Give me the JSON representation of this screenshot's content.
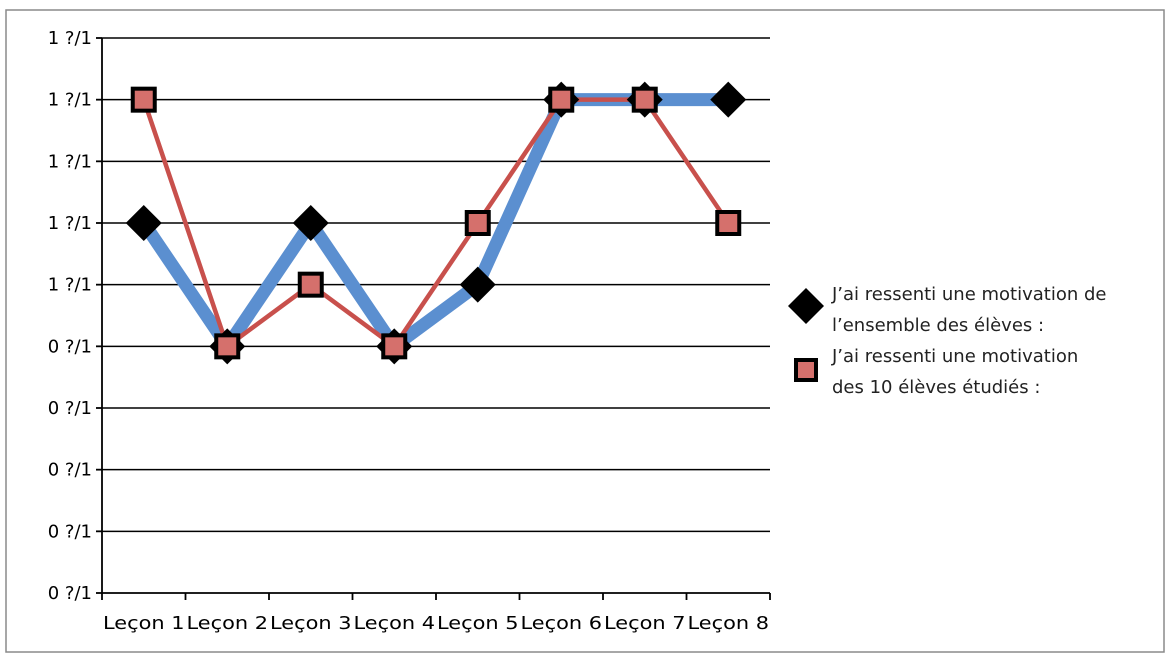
{
  "chart_data": {
    "type": "line",
    "title": "",
    "xlabel": "",
    "ylabel": "",
    "categories": [
      "Leçon 1",
      "Leçon 2",
      "Leçon 3",
      "Leçon 4",
      "Leçon 5",
      "Leçon 6",
      "Leçon 7",
      "Leçon 8"
    ],
    "y_tick_labels": [
      "0 ?/1",
      "0 ?/1",
      "0 ?/1",
      "0 ?/1",
      "0 ?/1",
      "1 ?/1",
      "1 ?/1",
      "1 ?/1",
      "1 ?/1",
      "1 ?/1"
    ],
    "ylim": [
      0,
      9
    ],
    "grid": true,
    "legend_position": "right",
    "series": [
      {
        "name_lines": [
          "J’ai ressenti une motivation de",
          "l’ensemble des élèves :"
        ],
        "values": [
          6,
          4,
          6,
          4,
          5,
          8,
          8,
          8
        ],
        "line_color": "#5b8fd0",
        "marker": "diamond",
        "marker_color": "#000000"
      },
      {
        "name_lines": [
          "J’ai ressenti une motivation",
          "des 10 élèves étudiés :"
        ],
        "values": [
          8,
          4,
          5,
          4,
          6,
          8,
          8,
          6
        ],
        "line_color": "#c8504c",
        "marker": "square",
        "marker_color": "#d5706c",
        "marker_border": "#000000"
      }
    ]
  }
}
